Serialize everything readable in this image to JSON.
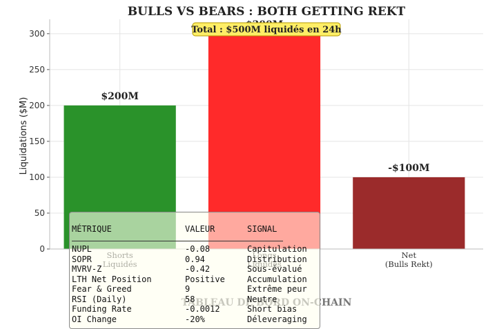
{
  "chart_data": {
    "type": "bar",
    "title": "BULLS VS BEARS : BOTH GETTING REKT",
    "ylabel": "Liquidations ($M)",
    "xlabel": "",
    "ylim": [
      0,
      320
    ],
    "yticks": [
      0,
      50,
      100,
      150,
      200,
      250,
      300
    ],
    "grid": true,
    "categories": [
      "Shorts\nLiquidés",
      "Longs\nLiquidés",
      "Net\n(Bulls Rekt)"
    ],
    "values": [
      200,
      300,
      -100
    ],
    "bar_heights": [
      200,
      300,
      100
    ],
    "colors": [
      "#2a922a",
      "#ff2a2a",
      "#9b2b2b"
    ],
    "data_labels": [
      "$200M",
      "$300M",
      "-$100M"
    ],
    "annotation": "Total : $500M liquidés en 24h"
  },
  "dashboard": {
    "title": "TABLEAU DE BORD ON-CHAIN",
    "headers": [
      "MÉTRIQUE",
      "VALEUR",
      "SIGNAL"
    ],
    "rows": [
      [
        "NUPL",
        "-0.08",
        "Capitulation"
      ],
      [
        "SOPR",
        "0.94",
        "Distribution"
      ],
      [
        "MVRV-Z",
        "-0.42",
        "Sous-évalué"
      ],
      [
        "LTH Net Position",
        "Positive",
        "Accumulation"
      ],
      [
        "Fear & Greed",
        "9",
        "Extrême peur"
      ],
      [
        "RSI (Daily)",
        "58",
        "Neutre"
      ],
      [
        "Funding Rate",
        "-0.0012",
        "Short bias"
      ],
      [
        "OI Change",
        "-20%",
        "Déleveraging"
      ]
    ]
  }
}
